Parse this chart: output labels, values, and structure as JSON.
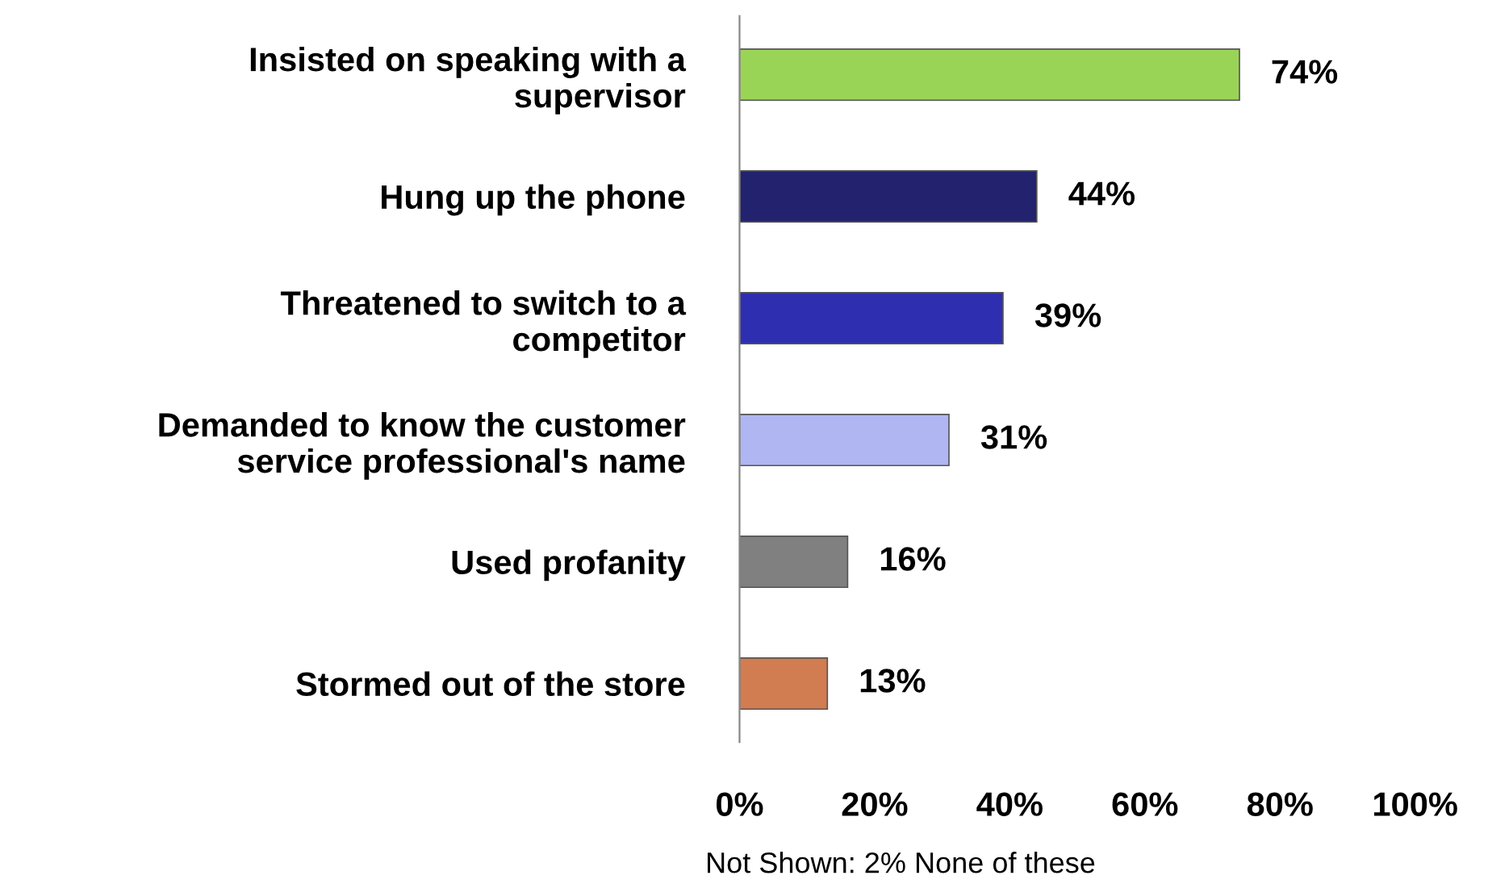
{
  "chart_data": {
    "type": "bar",
    "orientation": "horizontal",
    "categories": [
      "Insisted on speaking with a\nsupervisor",
      "Hung up the phone",
      "Threatened to switch to a\ncompetitor",
      "Demanded to know the customer\nservice professional's name",
      "Used profanity",
      "Stormed out of the store"
    ],
    "values": [
      74,
      44,
      39,
      31,
      16,
      13
    ],
    "colors": [
      "#9ad457",
      "#22226e",
      "#2e2eb0",
      "#b0b6f2",
      "#808080",
      "#d27c52"
    ],
    "value_labels": [
      "74%",
      "44%",
      "39%",
      "31%",
      "16%",
      "13%"
    ],
    "xlim": [
      0,
      100
    ],
    "xticks": [
      {
        "value": 0,
        "label": "0%"
      },
      {
        "value": 20,
        "label": "20%"
      },
      {
        "value": 40,
        "label": "40%"
      },
      {
        "value": 60,
        "label": "60%"
      },
      {
        "value": 80,
        "label": "80%"
      },
      {
        "value": 100,
        "label": "100%"
      }
    ],
    "grid": false,
    "legend": false,
    "annotations": [
      "Not Shown: 2% None of these"
    ]
  }
}
